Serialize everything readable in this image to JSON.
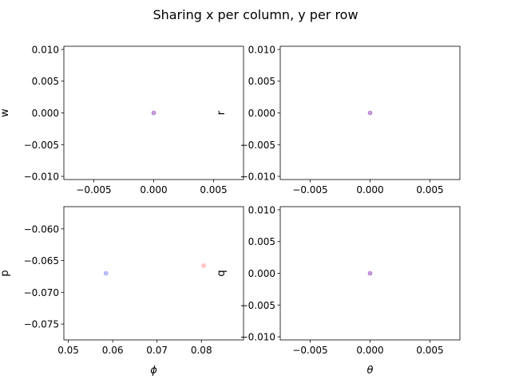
{
  "figure": {
    "title": "Sharing x per column, y per row"
  },
  "chart_data": [
    {
      "type": "scatter",
      "xlabel": "",
      "ylabel": "w",
      "xlim": [
        -0.0075,
        0.0075
      ],
      "ylim": [
        -0.0105,
        0.0105
      ],
      "xticks": [
        -0.005,
        0.0,
        0.005
      ],
      "xtick_labels": [
        "−0.005",
        "0.000",
        "0.005"
      ],
      "yticks": [
        0.01,
        0.005,
        0.0,
        -0.005,
        -0.01
      ],
      "ytick_labels": [
        "0.010",
        "0.005",
        "0.000",
        "−0.005",
        "−0.010"
      ],
      "points": [
        {
          "x": 0.0,
          "y": 0.0,
          "color": "#9a4fc0"
        }
      ]
    },
    {
      "type": "scatter",
      "xlabel": "",
      "ylabel": "r",
      "xlim": [
        -0.0075,
        0.0075
      ],
      "ylim": [
        -0.0105,
        0.0105
      ],
      "xticks": [
        -0.005,
        0.0,
        0.005
      ],
      "xtick_labels": [
        "−0.005",
        "0.000",
        "0.005"
      ],
      "yticks": [
        0.01,
        0.005,
        0.0,
        -0.005,
        -0.01
      ],
      "ytick_labels": [
        "0.010",
        "0.005",
        "0.000",
        "−0.005",
        "−0.010"
      ],
      "points": [
        {
          "x": 0.0,
          "y": 0.0,
          "color": "#9a4fc0"
        }
      ]
    },
    {
      "type": "scatter",
      "xlabel": "ϕ",
      "ylabel": "p",
      "xlim": [
        0.049,
        0.0895
      ],
      "ylim": [
        -0.0775,
        -0.0565
      ],
      "xticks": [
        0.05,
        0.06,
        0.07,
        0.08
      ],
      "xtick_labels": [
        "0.05",
        "0.06",
        "0.07",
        "0.08"
      ],
      "yticks": [
        -0.06,
        -0.065,
        -0.07,
        -0.075
      ],
      "ytick_labels": [
        "−0.060",
        "−0.065",
        "−0.070",
        "−0.075"
      ],
      "points": [
        {
          "x": 0.0585,
          "y": -0.067,
          "color": "#8a8aff"
        },
        {
          "x": 0.0805,
          "y": -0.0658,
          "color": "#ff9a9a"
        }
      ]
    },
    {
      "type": "scatter",
      "xlabel": "θ",
      "ylabel": "q",
      "xlim": [
        -0.0075,
        0.0075
      ],
      "ylim": [
        -0.0105,
        0.0105
      ],
      "xticks": [
        -0.005,
        0.0,
        0.005
      ],
      "xtick_labels": [
        "−0.005",
        "0.000",
        "0.005"
      ],
      "yticks": [
        0.01,
        0.005,
        0.0,
        -0.005,
        -0.01
      ],
      "ytick_labels": [
        "0.010",
        "0.005",
        "0.000",
        "−0.005",
        "−0.010"
      ],
      "points": [
        {
          "x": 0.0,
          "y": 0.0,
          "color": "#9a4fc0"
        }
      ]
    }
  ]
}
